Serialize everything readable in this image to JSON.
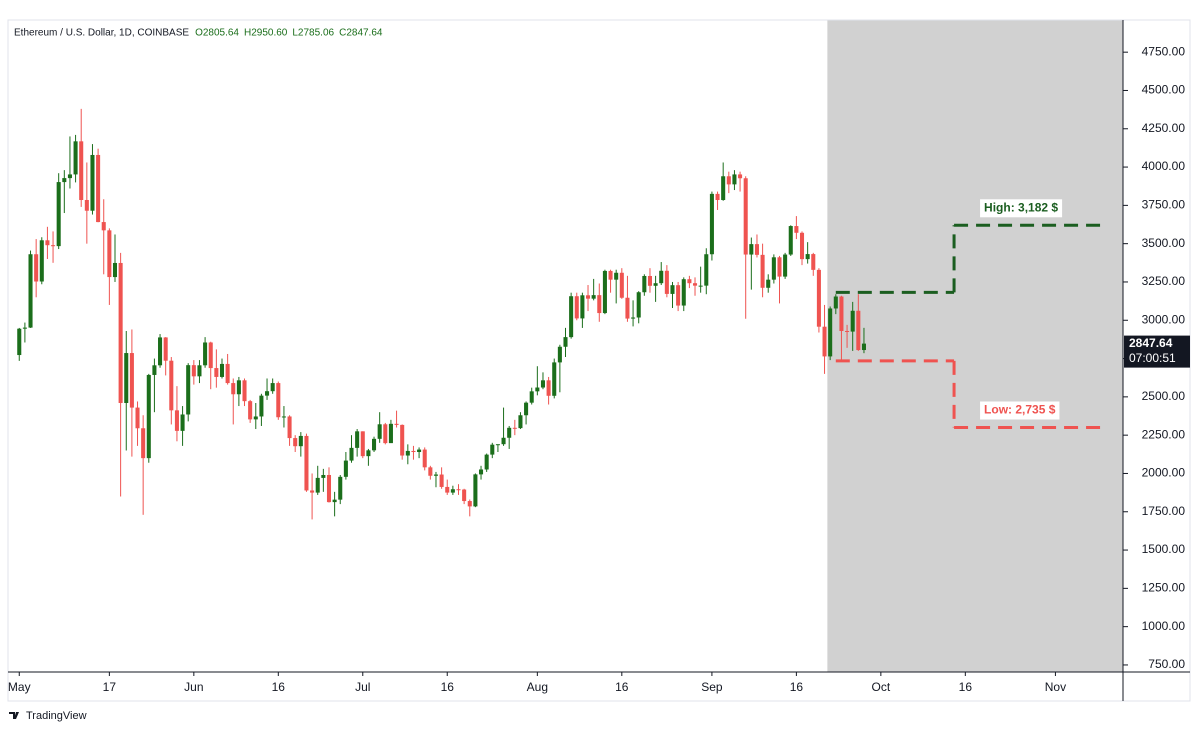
{
  "chart_data": {
    "type": "candlestick",
    "title": "Ethereum / U.S. Dollar, 1D, COINBASE",
    "ohlc_readout": [
      "O2805.64",
      "H2950.60",
      "L2785.06",
      "C2847.64"
    ],
    "up_color": "#1b6e1b",
    "down_color": "#ef5350",
    "x": [
      "05-01",
      "05-02",
      "05-03",
      "05-04",
      "05-05",
      "05-06",
      "05-07",
      "05-08",
      "05-09",
      "05-10",
      "05-11",
      "05-12",
      "05-13",
      "05-14",
      "05-15",
      "05-16",
      "05-17",
      "05-18",
      "05-19",
      "05-20",
      "05-21",
      "05-22",
      "05-23",
      "05-24",
      "05-25",
      "05-26",
      "05-27",
      "05-28",
      "05-29",
      "05-30",
      "05-31",
      "06-01",
      "06-02",
      "06-03",
      "06-04",
      "06-05",
      "06-06",
      "06-07",
      "06-08",
      "06-09",
      "06-10",
      "06-11",
      "06-12",
      "06-13",
      "06-14",
      "06-15",
      "06-16",
      "06-17",
      "06-18",
      "06-19",
      "06-20",
      "06-21",
      "06-22",
      "06-23",
      "06-24",
      "06-25",
      "06-26",
      "06-27",
      "06-28",
      "06-29",
      "06-30",
      "07-01",
      "07-02",
      "07-03",
      "07-04",
      "07-05",
      "07-06",
      "07-07",
      "07-08",
      "07-09",
      "07-10",
      "07-11",
      "07-12",
      "07-13",
      "07-14",
      "07-15",
      "07-16",
      "07-17",
      "07-18",
      "07-19",
      "07-20",
      "07-21",
      "07-22",
      "07-23",
      "07-24",
      "07-25",
      "07-26",
      "07-27",
      "07-28",
      "07-29",
      "07-30",
      "07-31",
      "08-01",
      "08-02",
      "08-03",
      "08-04",
      "08-05",
      "08-06",
      "08-07",
      "08-08",
      "08-09",
      "08-10",
      "08-11",
      "08-12",
      "08-13",
      "08-14",
      "08-15",
      "08-16",
      "08-17",
      "08-18",
      "08-19",
      "08-20",
      "08-21",
      "08-22",
      "08-23",
      "08-24",
      "08-25",
      "08-26",
      "08-27",
      "08-28",
      "08-29",
      "08-30",
      "08-31",
      "09-01",
      "09-02",
      "09-03",
      "09-04",
      "09-05",
      "09-06",
      "09-07",
      "09-08",
      "09-09",
      "09-10",
      "09-11",
      "09-12",
      "09-13",
      "09-14",
      "09-15",
      "09-16",
      "09-17",
      "09-18",
      "09-19",
      "09-20",
      "09-21",
      "09-22",
      "09-23",
      "09-24",
      "09-25",
      "09-26",
      "09-27",
      "09-28"
    ],
    "open": [
      2773,
      2945,
      2952,
      3431,
      3253,
      3522,
      3490,
      3484,
      3902,
      3928,
      3952,
      4168,
      3785,
      3715,
      4079,
      3641,
      3587,
      3282,
      3374,
      2460,
      2786,
      2430,
      2295,
      2100,
      2643,
      2706,
      2888,
      2736,
      2412,
      2278,
      2385,
      2707,
      2634,
      2706,
      2855,
      2688,
      2630,
      2715,
      2590,
      2517,
      2608,
      2472,
      2353,
      2372,
      2508,
      2537,
      2590,
      2367,
      2372,
      2231,
      2178,
      2245,
      1889,
      1875,
      1971,
      1990,
      1813,
      1829,
      1978,
      2084,
      2167,
      2275,
      2113,
      2151,
      2226,
      2321,
      2198,
      2324,
      2317,
      2117,
      2147,
      2140,
      2156,
      2040,
      1985,
      1993,
      1912,
      1875,
      1897,
      1895,
      1820,
      1785,
      1994,
      2026,
      2123,
      2188,
      2191,
      2233,
      2298,
      2296,
      2380,
      2462,
      2536,
      2561,
      2608,
      2507,
      2725,
      2827,
      2890,
      3157,
      3012,
      3163,
      3141,
      3164,
      3047,
      3322,
      3265,
      3310,
      3147,
      3011,
      3018,
      3183,
      3289,
      3225,
      3242,
      3323,
      3172,
      3229,
      3096,
      3268,
      3242,
      3226,
      3226,
      3431,
      3825,
      3785,
      3940,
      3887,
      3952,
      3927,
      3429,
      3497,
      3427,
      3212,
      3265,
      3411,
      3285,
      3429,
      3615,
      3571,
      3399,
      3432,
      3329,
      2958,
      2764,
      3077,
      3155,
      2930,
      2926,
      3062,
      2805.64
    ],
    "high": [
      2950,
      2985,
      3455,
      3530,
      3542,
      3610,
      3580,
      3960,
      3980,
      4200,
      4210,
      4380,
      4030,
      4150,
      4120,
      3790,
      3600,
      3560,
      3440,
      2930,
      2940,
      2470,
      2380,
      2650,
      2750,
      2910,
      2890,
      2760,
      2570,
      2440,
      2720,
      2740,
      2740,
      2890,
      2860,
      2810,
      2750,
      2780,
      2620,
      2630,
      2620,
      2480,
      2460,
      2520,
      2620,
      2620,
      2600,
      2440,
      2380,
      2250,
      2270,
      2260,
      2000,
      2050,
      2030,
      2040,
      1880,
      1990,
      2140,
      2250,
      2290,
      2275,
      2160,
      2240,
      2400,
      2330,
      2350,
      2410,
      2320,
      2190,
      2180,
      2170,
      2170,
      2050,
      2010,
      2040,
      1960,
      1920,
      1930,
      1900,
      1830,
      2000,
      2050,
      2130,
      2200,
      2190,
      2430,
      2310,
      2350,
      2400,
      2470,
      2560,
      2700,
      2660,
      2630,
      2750,
      2840,
      2950,
      3180,
      3180,
      3180,
      3230,
      3270,
      3240,
      3330,
      3330,
      3330,
      3340,
      3290,
      3130,
      3190,
      3300,
      3340,
      3290,
      3380,
      3360,
      3250,
      3250,
      3280,
      3290,
      3280,
      3350,
      3470,
      3840,
      3840,
      4030,
      3970,
      3980,
      3970,
      3940,
      3540,
      3560,
      3500,
      3300,
      3430,
      3420,
      3440,
      3620,
      3680,
      3580,
      3510,
      3440,
      3340,
      3100,
      3090,
      3170,
      3160,
      2970,
      3120,
      3170,
      2950.6
    ],
    "low": [
      2735,
      2855,
      2950,
      3150,
      3235,
      3400,
      3375,
      3465,
      3700,
      3860,
      3900,
      3740,
      3500,
      3690,
      3640,
      3300,
      3100,
      3250,
      1850,
      2150,
      2110,
      2180,
      1730,
      2070,
      2400,
      2690,
      2640,
      2320,
      2210,
      2180,
      2340,
      2580,
      2590,
      2690,
      2550,
      2560,
      2620,
      2580,
      2320,
      2440,
      2440,
      2330,
      2290,
      2310,
      2480,
      2520,
      2350,
      2300,
      2180,
      2140,
      2110,
      1880,
      1700,
      1860,
      1880,
      1810,
      1720,
      1800,
      1960,
      2070,
      2110,
      2100,
      2050,
      2140,
      2200,
      2190,
      2200,
      2300,
      2090,
      2060,
      2090,
      2100,
      2020,
      1960,
      1910,
      1900,
      1860,
      1860,
      1860,
      1800,
      1720,
      1780,
      1960,
      2010,
      2100,
      2140,
      2180,
      2160,
      2250,
      2290,
      2320,
      2450,
      2510,
      2550,
      2450,
      2490,
      2530,
      2760,
      2880,
      3000,
      2950,
      3060,
      3130,
      2990,
      3040,
      3180,
      3110,
      3140,
      2990,
      2960,
      2980,
      3160,
      3180,
      3120,
      3230,
      3150,
      3080,
      3060,
      3060,
      3210,
      3160,
      3180,
      3170,
      3390,
      3720,
      3780,
      3830,
      3850,
      3840,
      3010,
      3200,
      3410,
      3150,
      3180,
      3240,
      3110,
      3270,
      3420,
      3530,
      3360,
      3370,
      3290,
      2920,
      2650,
      2740,
      3040,
      2740,
      2820,
      2800,
      2800,
      2785.06
    ],
    "close": [
      2945,
      2952,
      3431,
      3253,
      3522,
      3490,
      3484,
      3902,
      3928,
      3952,
      4168,
      3785,
      3715,
      4079,
      3641,
      3587,
      3282,
      3374,
      2460,
      2786,
      2430,
      2295,
      2100,
      2643,
      2706,
      2888,
      2736,
      2412,
      2278,
      2385,
      2707,
      2634,
      2706,
      2855,
      2688,
      2630,
      2715,
      2590,
      2517,
      2608,
      2472,
      2353,
      2372,
      2508,
      2537,
      2590,
      2367,
      2372,
      2231,
      2178,
      2245,
      1889,
      1875,
      1971,
      1990,
      1813,
      1829,
      1978,
      2084,
      2167,
      2275,
      2113,
      2151,
      2226,
      2321,
      2198,
      2324,
      2317,
      2117,
      2147,
      2140,
      2156,
      2040,
      1985,
      1993,
      1912,
      1875,
      1897,
      1895,
      1820,
      1785,
      1994,
      2026,
      2123,
      2188,
      2191,
      2233,
      2298,
      2296,
      2380,
      2462,
      2536,
      2561,
      2608,
      2507,
      2725,
      2827,
      2890,
      3157,
      3012,
      3163,
      3141,
      3164,
      3047,
      3322,
      3265,
      3310,
      3147,
      3011,
      3018,
      3183,
      3289,
      3225,
      3242,
      3323,
      3172,
      3229,
      3096,
      3268,
      3242,
      3226,
      3226,
      3431,
      3825,
      3785,
      3940,
      3887,
      3952,
      3927,
      3429,
      3497,
      3427,
      3212,
      3265,
      3411,
      3285,
      3429,
      3615,
      3571,
      3399,
      3432,
      3329,
      2958,
      2764,
      3077,
      3155,
      2930,
      2926,
      3062,
      2805.64,
      2847.64
    ],
    "xlim": [
      "04-29",
      "11-13"
    ],
    "xticks": [
      {
        "value": "05-01",
        "label": "May"
      },
      {
        "value": "05-17",
        "label": "17"
      },
      {
        "value": "06-01",
        "label": "Jun"
      },
      {
        "value": "06-16",
        "label": "16"
      },
      {
        "value": "07-01",
        "label": "Jul"
      },
      {
        "value": "07-16",
        "label": "16"
      },
      {
        "value": "08-01",
        "label": "Aug"
      },
      {
        "value": "08-16",
        "label": "16"
      },
      {
        "value": "09-01",
        "label": "Sep"
      },
      {
        "value": "09-16",
        "label": "16"
      },
      {
        "value": "10-01",
        "label": "Oct"
      },
      {
        "value": "10-16",
        "label": "16"
      },
      {
        "value": "11-01",
        "label": "Nov"
      }
    ],
    "ylim": [
      704,
      4960
    ],
    "yticks": [
      {
        "value": 750,
        "label": "750.00"
      },
      {
        "value": 1000,
        "label": "1000.00"
      },
      {
        "value": 1250,
        "label": "1250.00"
      },
      {
        "value": 1500,
        "label": "1500.00"
      },
      {
        "value": 1750,
        "label": "1750.00"
      },
      {
        "value": 2000,
        "label": "2000.00"
      },
      {
        "value": 2250,
        "label": "2250.00"
      },
      {
        "value": 2500,
        "label": "2500.00"
      },
      {
        "value": 2750,
        "label": "2750.00"
      },
      {
        "value": 3000,
        "label": "3000.00"
      },
      {
        "value": 3250,
        "label": "3250.00"
      },
      {
        "value": 3500,
        "label": "3500.00"
      },
      {
        "value": 3750,
        "label": "3750.00"
      },
      {
        "value": 4000,
        "label": "4000.00"
      },
      {
        "value": 4250,
        "label": "4250.00"
      },
      {
        "value": 4500,
        "label": "4500.00"
      },
      {
        "value": 4750,
        "label": "4750.00"
      }
    ],
    "shaded_from": "09-22",
    "shade_color": "#d1d1d1",
    "last_price_label": "2847.64",
    "countdown": "07:00:51",
    "annotations": [
      {
        "text": "High: 3,182 $",
        "color": "#1b5e20",
        "x": [
          "09-23",
          "10-14",
          "11-09"
        ],
        "levels": [
          3182,
          3620
        ]
      },
      {
        "text": "Low: 2,735 $",
        "color": "#ef5350",
        "x": [
          "09-23",
          "10-14",
          "11-09"
        ],
        "levels": [
          2735,
          2300
        ]
      }
    ],
    "footer": "TradingView"
  }
}
